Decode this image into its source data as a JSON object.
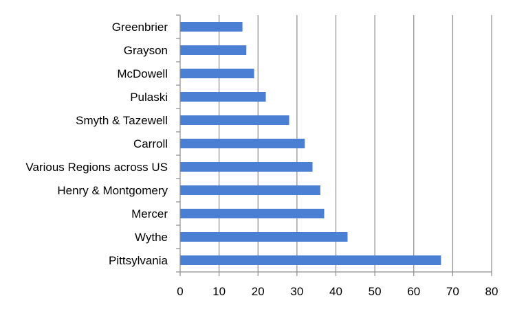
{
  "chart_data": {
    "type": "bar",
    "orientation": "horizontal",
    "categories": [
      "Greenbrier",
      "Grayson",
      "McDowell",
      "Pulaski",
      "Smyth & Tazewell",
      "Carroll",
      "Various Regions across US",
      "Henry & Montgomery",
      "Mercer",
      "Wythe",
      "Pittsylvania"
    ],
    "values": [
      16,
      17,
      19,
      22,
      28,
      32,
      34,
      36,
      37,
      43,
      67
    ],
    "xticks": [
      0,
      10,
      20,
      30,
      40,
      50,
      60,
      70,
      80
    ],
    "xlim": [
      0,
      80
    ],
    "grid": true,
    "legend": "none",
    "title": "",
    "xlabel": "",
    "ylabel": "",
    "colors": {
      "bar": "#4a7fd4",
      "grid": "#8c8c8c",
      "axis": "#8c8c8c",
      "text": "#000000"
    }
  }
}
